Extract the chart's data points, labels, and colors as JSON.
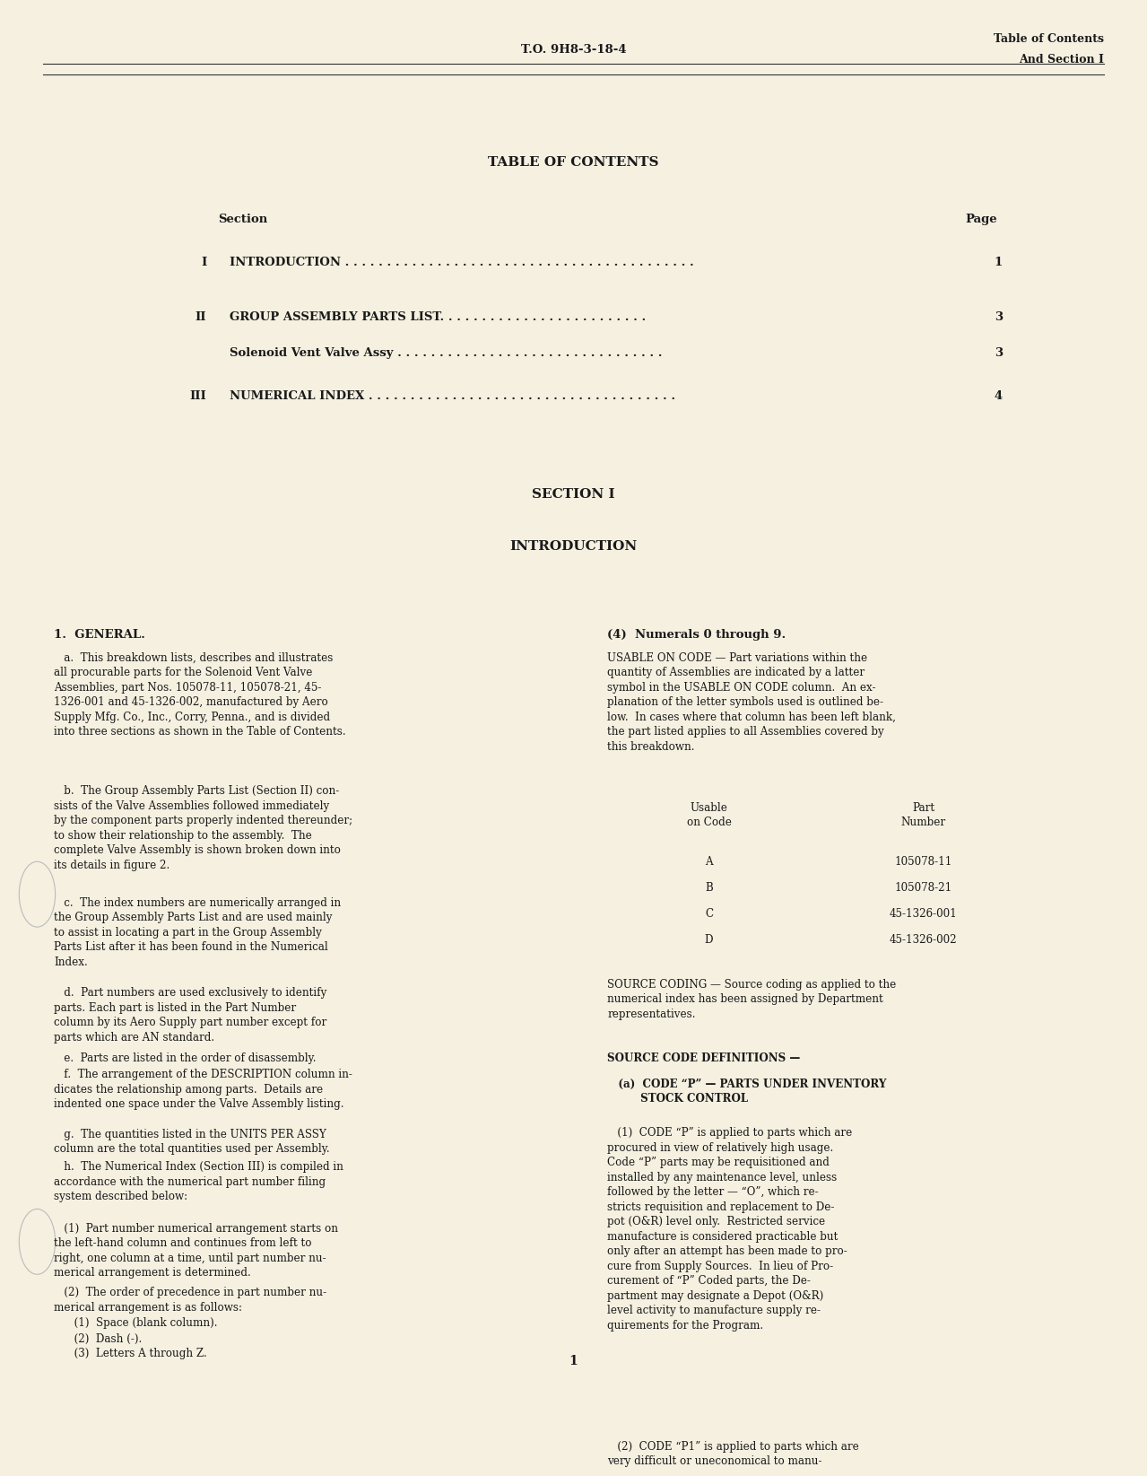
{
  "bg_color": "#f5f0e0",
  "text_color": "#1a1a1a",
  "page_width": 12.59,
  "page_height": 16.11,
  "header_center": "T.O. 9H8-3-18-4",
  "header_right_line1": "Table of Contents",
  "header_right_line2": "And Section I",
  "toc_title": "TABLE OF CONTENTS",
  "toc_section_label": "Section",
  "toc_page_label": "Page",
  "toc_entries": [
    {
      "roman": "I",
      "title": "INTRODUCTION . . . . . . . . . . . . . . . . . . . . . . . . . . . . . . . . . . . . . . . . . .",
      "page": "1"
    },
    {
      "roman": "II",
      "title": "GROUP ASSEMBLY PARTS LIST. . . . . . . . . . . . . . . . . . . . . . . . .",
      "page": "3"
    },
    {
      "roman": "",
      "title": "Solenoid Vent Valve Assy . . . . . . . . . . . . . . . . . . . . . . . . . . . . . . . .",
      "page": "3"
    },
    {
      "roman": "III",
      "title": "NUMERICAL INDEX . . . . . . . . . . . . . . . . . . . . . . . . . . . . . . . . . . . . .",
      "page": "4"
    }
  ],
  "section1_title": "SECTION I",
  "section1_subtitle": "INTRODUCTION",
  "general_heading": "1.  GENERAL.",
  "general_heading_right": "(4)  Numerals 0 through 9.",
  "usable_table_header_left": "Usable\non Code",
  "usable_table_header_right": "Part\nNumber",
  "usable_table_rows": [
    [
      "A",
      "105078-11"
    ],
    [
      "B",
      "105078-21"
    ],
    [
      "C",
      "45-1326-001"
    ],
    [
      "D",
      "45-1326-002"
    ]
  ],
  "page_number": "1"
}
